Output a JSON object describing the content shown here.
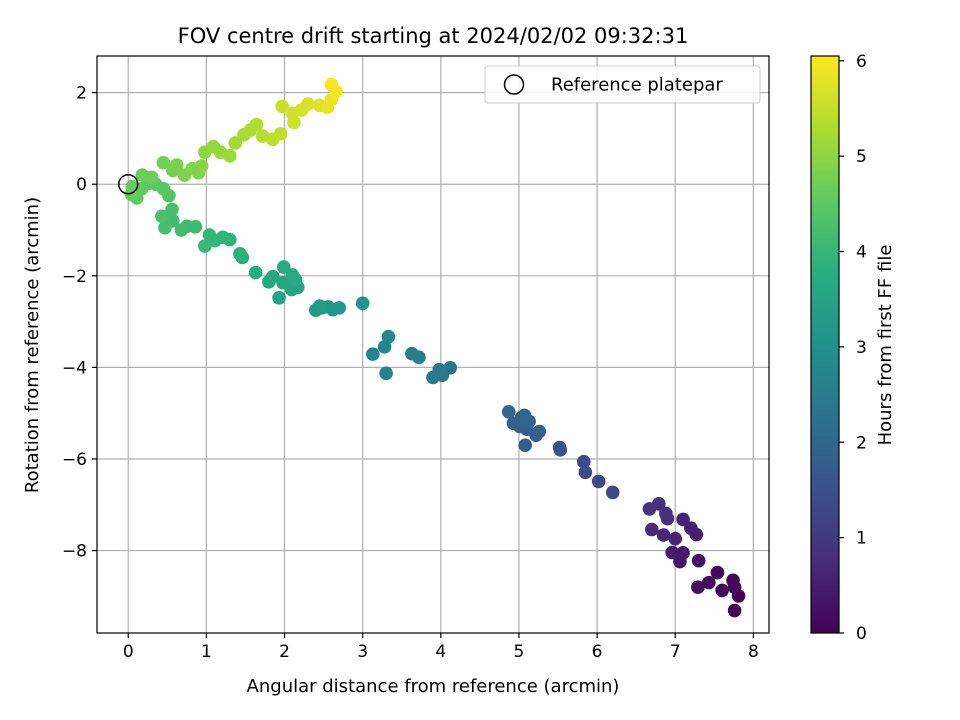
{
  "chart_data": {
    "type": "scatter",
    "title": "FOV centre drift starting at 2024/02/02 09:32:31",
    "xlabel": "Angular distance from reference (arcmin)",
    "ylabel": "Rotation from reference (arcmin)",
    "xlim": [
      -0.4,
      8.2
    ],
    "ylim": [
      -9.8,
      2.8
    ],
    "xticks": [
      0,
      1,
      2,
      3,
      4,
      5,
      6,
      7,
      8
    ],
    "yticks": [
      -8,
      -6,
      -4,
      -2,
      0,
      2
    ],
    "grid": true,
    "legend": {
      "placement": "top-right",
      "entries": [
        "Reference platepar"
      ]
    },
    "reference_point": {
      "x": 0,
      "y": 0
    },
    "colorbar": {
      "label": "Hours from first FF file",
      "range": [
        0,
        6.05
      ],
      "ticks": [
        0,
        1,
        2,
        3,
        4,
        5,
        6
      ],
      "colormap": "viridis"
    },
    "series": [
      {
        "points": [
          {
            "x": 7.81,
            "y": -8.99,
            "c": 0.03
          },
          {
            "x": 7.76,
            "y": -9.31,
            "c": 0.05
          },
          {
            "x": 7.76,
            "y": -8.8,
            "c": 0.08
          },
          {
            "x": 7.74,
            "y": -8.65,
            "c": 0.1
          },
          {
            "x": 7.6,
            "y": -8.87,
            "c": 0.13
          },
          {
            "x": 7.54,
            "y": -8.48,
            "c": 0.16
          },
          {
            "x": 7.43,
            "y": -8.7,
            "c": 0.2
          },
          {
            "x": 7.29,
            "y": -8.8,
            "c": 0.24
          },
          {
            "x": 7.3,
            "y": -8.22,
            "c": 0.3
          },
          {
            "x": 7.06,
            "y": -8.24,
            "c": 0.38
          },
          {
            "x": 7.1,
            "y": -8.05,
            "c": 0.42
          },
          {
            "x": 6.96,
            "y": -8.04,
            "c": 0.45
          },
          {
            "x": 7.27,
            "y": -7.65,
            "c": 0.52
          },
          {
            "x": 7.2,
            "y": -7.51,
            "c": 0.55
          },
          {
            "x": 7.1,
            "y": -7.32,
            "c": 0.58
          },
          {
            "x": 7.0,
            "y": -7.74,
            "c": 0.62
          },
          {
            "x": 6.85,
            "y": -7.66,
            "c": 0.66
          },
          {
            "x": 6.7,
            "y": -7.54,
            "c": 0.7
          },
          {
            "x": 6.9,
            "y": -7.3,
            "c": 0.75
          },
          {
            "x": 6.88,
            "y": -7.19,
            "c": 0.79
          },
          {
            "x": 6.79,
            "y": -6.98,
            "c": 0.84
          },
          {
            "x": 6.67,
            "y": -7.09,
            "c": 0.88
          },
          {
            "x": 6.2,
            "y": -6.73,
            "c": 1.28
          },
          {
            "x": 6.02,
            "y": -6.49,
            "c": 1.33
          },
          {
            "x": 5.85,
            "y": -6.29,
            "c": 1.38
          },
          {
            "x": 5.83,
            "y": -6.06,
            "c": 1.42
          },
          {
            "x": 5.53,
            "y": -5.8,
            "c": 1.55
          },
          {
            "x": 5.52,
            "y": -5.75,
            "c": 1.58
          },
          {
            "x": 5.08,
            "y": -5.7,
            "c": 1.75
          },
          {
            "x": 5.22,
            "y": -5.48,
            "c": 1.78
          },
          {
            "x": 5.26,
            "y": -5.4,
            "c": 1.81
          },
          {
            "x": 5.1,
            "y": -5.35,
            "c": 1.84
          },
          {
            "x": 5.01,
            "y": -5.29,
            "c": 1.87
          },
          {
            "x": 4.93,
            "y": -5.22,
            "c": 1.9
          },
          {
            "x": 5.13,
            "y": -5.18,
            "c": 1.92
          },
          {
            "x": 5.03,
            "y": -5.1,
            "c": 1.95
          },
          {
            "x": 5.07,
            "y": -5.05,
            "c": 1.97
          },
          {
            "x": 4.87,
            "y": -4.97,
            "c": 2.0
          },
          {
            "x": 4.12,
            "y": -4.01,
            "c": 2.35
          },
          {
            "x": 4.02,
            "y": -4.17,
            "c": 2.38
          },
          {
            "x": 3.9,
            "y": -4.22,
            "c": 2.41
          },
          {
            "x": 3.98,
            "y": -4.05,
            "c": 2.44
          },
          {
            "x": 3.72,
            "y": -3.78,
            "c": 2.5
          },
          {
            "x": 3.63,
            "y": -3.7,
            "c": 2.53
          },
          {
            "x": 3.3,
            "y": -4.13,
            "c": 2.68
          },
          {
            "x": 3.13,
            "y": -3.71,
            "c": 2.74
          },
          {
            "x": 3.28,
            "y": -3.55,
            "c": 2.77
          },
          {
            "x": 3.33,
            "y": -3.33,
            "c": 2.8
          },
          {
            "x": 3.0,
            "y": -2.6,
            "c": 3.1
          },
          {
            "x": 2.7,
            "y": -2.7,
            "c": 3.18
          },
          {
            "x": 2.62,
            "y": -2.74,
            "c": 3.2
          },
          {
            "x": 2.56,
            "y": -2.68,
            "c": 3.22
          },
          {
            "x": 2.48,
            "y": -2.7,
            "c": 3.25
          },
          {
            "x": 2.4,
            "y": -2.75,
            "c": 3.27
          },
          {
            "x": 2.45,
            "y": -2.66,
            "c": 3.3
          },
          {
            "x": 1.93,
            "y": -2.48,
            "c": 3.45
          },
          {
            "x": 2.09,
            "y": -2.3,
            "c": 3.5
          },
          {
            "x": 2.17,
            "y": -2.25,
            "c": 3.53
          },
          {
            "x": 2.06,
            "y": -2.18,
            "c": 3.55
          },
          {
            "x": 1.98,
            "y": -2.15,
            "c": 3.57
          },
          {
            "x": 1.8,
            "y": -2.13,
            "c": 3.6
          },
          {
            "x": 1.85,
            "y": -2.02,
            "c": 3.62
          },
          {
            "x": 2.14,
            "y": -2.08,
            "c": 3.64
          },
          {
            "x": 2.1,
            "y": -1.98,
            "c": 3.66
          },
          {
            "x": 1.99,
            "y": -1.81,
            "c": 3.68
          },
          {
            "x": 1.63,
            "y": -1.93,
            "c": 3.75
          },
          {
            "x": 1.46,
            "y": -1.6,
            "c": 3.82
          },
          {
            "x": 1.43,
            "y": -1.52,
            "c": 3.84
          },
          {
            "x": 1.3,
            "y": -1.21,
            "c": 3.9
          },
          {
            "x": 1.21,
            "y": -1.16,
            "c": 3.93
          },
          {
            "x": 1.11,
            "y": -1.23,
            "c": 3.96
          },
          {
            "x": 1.04,
            "y": -1.11,
            "c": 3.99
          },
          {
            "x": 0.98,
            "y": -1.35,
            "c": 4.02
          },
          {
            "x": 0.86,
            "y": -0.93,
            "c": 4.08
          },
          {
            "x": 0.75,
            "y": -0.92,
            "c": 4.12
          },
          {
            "x": 0.68,
            "y": -1.0,
            "c": 4.15
          },
          {
            "x": 0.57,
            "y": -0.8,
            "c": 4.18
          },
          {
            "x": 0.47,
            "y": -0.95,
            "c": 4.2
          },
          {
            "x": 0.56,
            "y": -0.55,
            "c": 4.25
          },
          {
            "x": 0.43,
            "y": -0.7,
            "c": 4.28
          },
          {
            "x": 0.52,
            "y": -0.25,
            "c": 4.38
          },
          {
            "x": 0.45,
            "y": -0.1,
            "c": 4.45
          },
          {
            "x": 0.35,
            "y": 0.0,
            "c": 4.48
          },
          {
            "x": 0.26,
            "y": 0.02,
            "c": 4.5
          },
          {
            "x": 0.17,
            "y": -0.1,
            "c": 4.53
          },
          {
            "x": 0.11,
            "y": -0.3,
            "c": 4.56
          },
          {
            "x": 0.04,
            "y": -0.22,
            "c": 4.58
          },
          {
            "x": 0.05,
            "y": -0.05,
            "c": 4.61
          },
          {
            "x": 0.18,
            "y": 0.2,
            "c": 4.65
          },
          {
            "x": 0.3,
            "y": 0.15,
            "c": 4.68
          },
          {
            "x": 0.45,
            "y": 0.47,
            "c": 4.72
          },
          {
            "x": 0.57,
            "y": 0.3,
            "c": 4.76
          },
          {
            "x": 0.62,
            "y": 0.42,
            "c": 4.8
          },
          {
            "x": 0.72,
            "y": 0.2,
            "c": 4.84
          },
          {
            "x": 0.82,
            "y": 0.34,
            "c": 4.88
          },
          {
            "x": 0.9,
            "y": 0.25,
            "c": 4.92
          },
          {
            "x": 0.94,
            "y": 0.4,
            "c": 4.95
          },
          {
            "x": 0.98,
            "y": 0.7,
            "c": 5.0
          },
          {
            "x": 1.09,
            "y": 0.82,
            "c": 5.05
          },
          {
            "x": 1.18,
            "y": 0.7,
            "c": 5.08
          },
          {
            "x": 1.3,
            "y": 0.62,
            "c": 5.12
          },
          {
            "x": 1.37,
            "y": 0.9,
            "c": 5.17
          },
          {
            "x": 1.48,
            "y": 1.08,
            "c": 5.23
          },
          {
            "x": 1.56,
            "y": 1.18,
            "c": 5.28
          },
          {
            "x": 1.64,
            "y": 1.3,
            "c": 5.33
          },
          {
            "x": 1.72,
            "y": 1.05,
            "c": 5.38
          },
          {
            "x": 1.85,
            "y": 0.98,
            "c": 5.43
          },
          {
            "x": 1.95,
            "y": 1.1,
            "c": 5.47
          },
          {
            "x": 1.97,
            "y": 1.7,
            "c": 5.55
          },
          {
            "x": 2.12,
            "y": 1.35,
            "c": 5.6
          },
          {
            "x": 2.1,
            "y": 1.55,
            "c": 5.63
          },
          {
            "x": 2.22,
            "y": 1.62,
            "c": 5.66
          },
          {
            "x": 2.3,
            "y": 1.75,
            "c": 5.7
          },
          {
            "x": 2.45,
            "y": 1.72,
            "c": 5.76
          },
          {
            "x": 2.55,
            "y": 1.68,
            "c": 5.82
          },
          {
            "x": 2.6,
            "y": 1.85,
            "c": 5.88
          },
          {
            "x": 2.66,
            "y": 2.02,
            "c": 5.94
          },
          {
            "x": 2.6,
            "y": 2.18,
            "c": 6.0
          }
        ]
      }
    ]
  }
}
